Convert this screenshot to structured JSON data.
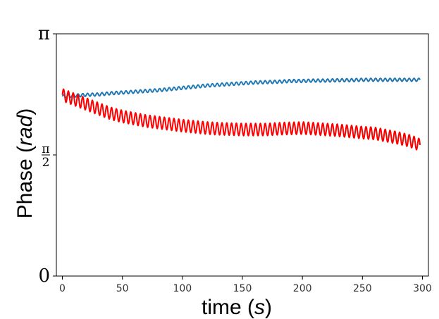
{
  "chart_data": {
    "type": "line",
    "xlabel": {
      "prefix": "time (",
      "unit": "s",
      "suffix": ")"
    },
    "ylabel": {
      "prefix": "Phase (",
      "unit": "rad",
      "suffix": ")"
    },
    "xlim": [
      -5,
      305
    ],
    "ylim": [
      0,
      3.14159
    ],
    "x_ticks": [
      0,
      50,
      100,
      150,
      200,
      250,
      300
    ],
    "y_ticks": [
      {
        "value": 0,
        "label": "0"
      },
      {
        "value": 1.5708,
        "label": "π/2"
      },
      {
        "value": 3.14159,
        "label": "π"
      }
    ],
    "grid": false,
    "series": [
      {
        "color": "#1f77b4",
        "x": [
          0,
          10,
          20,
          30,
          40,
          50,
          60,
          70,
          80,
          90,
          100,
          110,
          120,
          130,
          140,
          150,
          160,
          170,
          180,
          190,
          200,
          210,
          220,
          230,
          240,
          250,
          260,
          270,
          280,
          290,
          298
        ],
        "y": [
          2.33,
          2.34,
          2.35,
          2.355,
          2.37,
          2.38,
          2.39,
          2.4,
          2.41,
          2.425,
          2.44,
          2.455,
          2.47,
          2.48,
          2.49,
          2.5,
          2.51,
          2.515,
          2.52,
          2.53,
          2.53,
          2.535,
          2.535,
          2.54,
          2.54,
          2.545,
          2.545,
          2.545,
          2.545,
          2.545,
          2.545
        ],
        "oscillation_amplitude": 0.02,
        "oscillation_period": 4
      },
      {
        "color": "#ff0000",
        "x": [
          0,
          10,
          20,
          30,
          40,
          50,
          60,
          70,
          80,
          90,
          100,
          110,
          120,
          130,
          140,
          150,
          160,
          170,
          180,
          190,
          200,
          210,
          220,
          230,
          240,
          250,
          260,
          270,
          280,
          290,
          298
        ],
        "y": [
          2.35,
          2.29,
          2.23,
          2.17,
          2.11,
          2.07,
          2.04,
          2.01,
          1.99,
          1.97,
          1.95,
          1.935,
          1.92,
          1.91,
          1.905,
          1.9,
          1.9,
          1.9,
          1.91,
          1.915,
          1.92,
          1.91,
          1.9,
          1.89,
          1.875,
          1.86,
          1.85,
          1.82,
          1.79,
          1.75,
          1.7
        ],
        "oscillation_amplitude": 0.08,
        "oscillation_period": 4
      }
    ]
  }
}
